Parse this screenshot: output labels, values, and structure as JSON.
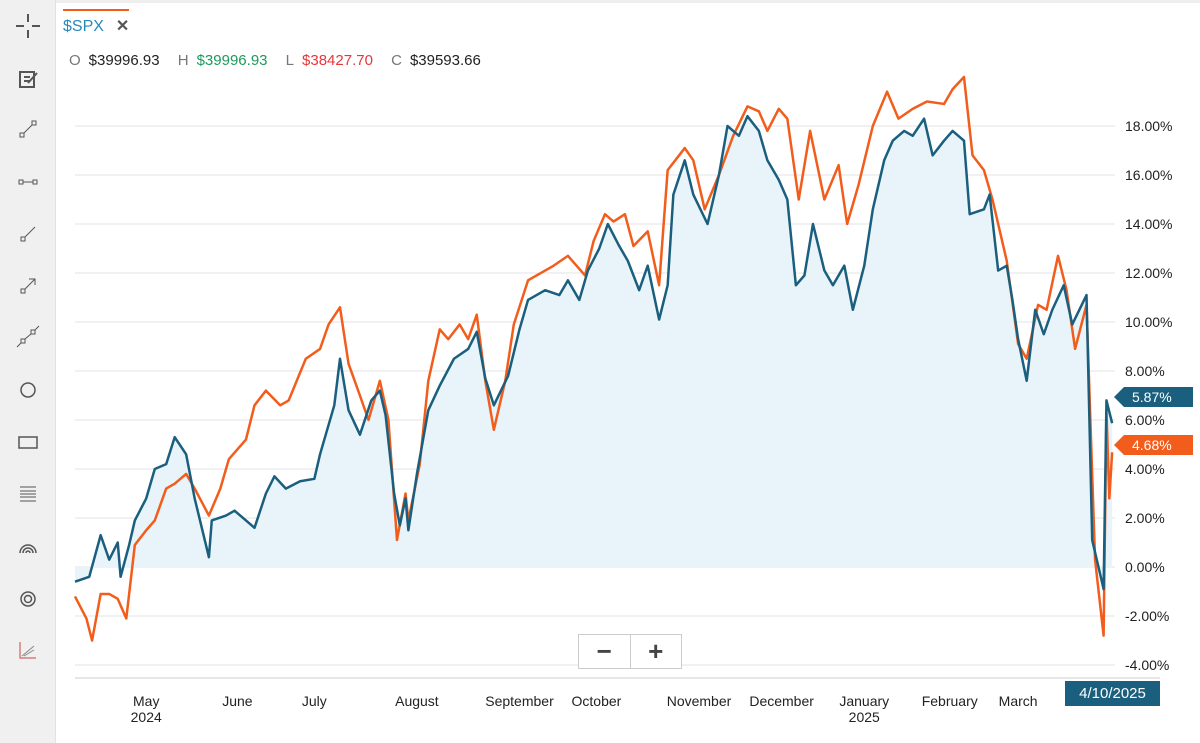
{
  "tab": {
    "symbol": "$SPX",
    "close_label": "✕"
  },
  "ohlc": {
    "o_label": "O",
    "o": "$39996.93",
    "h_label": "H",
    "h": "$39996.93",
    "l_label": "L",
    "l": "$38427.70",
    "c_label": "C",
    "c": "$39593.66"
  },
  "toolbar": [
    "crosshair-icon",
    "note-icon",
    "line-segment-icon",
    "horizontal-segment-icon",
    "ray-icon",
    "arrow-icon",
    "extended-line-icon",
    "circle-icon",
    "rectangle-icon",
    "fibonacci-icon",
    "arc-icon",
    "target-icon",
    "trend-chart-icon"
  ],
  "zoom": {
    "minus": "−",
    "plus": "+"
  },
  "colors": {
    "blue": "#1b5f7e",
    "orange": "#f25d1c",
    "fill": "#e8f4fa"
  },
  "chart_data": {
    "type": "line",
    "xlabel": "",
    "ylabel": "",
    "xlim": [
      0,
      365
    ],
    "ylim": [
      -4,
      20
    ],
    "y_ticks": [
      18,
      16,
      14,
      12,
      10,
      8,
      6,
      4,
      2,
      0,
      -2,
      -4
    ],
    "y_tick_labels": [
      "18.00%",
      "16.00%",
      "14.00%",
      "12.00%",
      "10.00%",
      "8.00%",
      "6.00%",
      "4.00%",
      "2.00%",
      "0.00%",
      "-2.00%",
      "-4.00%"
    ],
    "x_ticks": [
      {
        "day": 25,
        "label": "May",
        "sub": "2024"
      },
      {
        "day": 57,
        "label": "June",
        "sub": ""
      },
      {
        "day": 84,
        "label": "July",
        "sub": ""
      },
      {
        "day": 120,
        "label": "August",
        "sub": ""
      },
      {
        "day": 156,
        "label": "September",
        "sub": ""
      },
      {
        "day": 183,
        "label": "October",
        "sub": ""
      },
      {
        "day": 219,
        "label": "November",
        "sub": ""
      },
      {
        "day": 248,
        "label": "December",
        "sub": ""
      },
      {
        "day": 277,
        "label": "January",
        "sub": "2025"
      },
      {
        "day": 307,
        "label": "February",
        "sub": ""
      },
      {
        "day": 331,
        "label": "March",
        "sub": ""
      }
    ],
    "current_date": "4/10/2025",
    "grid": true,
    "series": [
      {
        "name": "blue",
        "last_label": "5.87%",
        "x": [
          0,
          5,
          9,
          12,
          15,
          16,
          19,
          21,
          25,
          28,
          32,
          35,
          39,
          42,
          47,
          48,
          53,
          56,
          60,
          63,
          67,
          70,
          74,
          79,
          84,
          86,
          91,
          93,
          96,
          100,
          104,
          107,
          109,
          112,
          114,
          116,
          117,
          120,
          124,
          128,
          133,
          138,
          141,
          144,
          147,
          152,
          156,
          159,
          165,
          170,
          173,
          177,
          180,
          184,
          187,
          191,
          194,
          198,
          201,
          205,
          208,
          210,
          214,
          217,
          222,
          226,
          229,
          233,
          236,
          240,
          243,
          247,
          250,
          253,
          256,
          259,
          263,
          266,
          270,
          273,
          277,
          280,
          284,
          287,
          291,
          294,
          298,
          301,
          305,
          308,
          312,
          314,
          319,
          321,
          324,
          327,
          329,
          331,
          334,
          337,
          340,
          343,
          347,
          350,
          355,
          357,
          361,
          362,
          364
        ],
        "y": [
          -0.6,
          -0.4,
          1.3,
          0.3,
          1.0,
          -0.4,
          0.9,
          1.9,
          2.8,
          4.0,
          4.2,
          5.3,
          4.6,
          2.8,
          0.4,
          1.9,
          2.1,
          2.3,
          1.9,
          1.6,
          3.0,
          3.7,
          3.2,
          3.5,
          3.6,
          4.6,
          6.6,
          8.5,
          6.4,
          5.4,
          6.8,
          7.2,
          6.2,
          3.0,
          1.7,
          2.8,
          1.5,
          3.8,
          6.4,
          7.4,
          8.5,
          8.9,
          9.6,
          7.7,
          6.6,
          7.8,
          9.7,
          10.9,
          11.3,
          11.1,
          11.7,
          10.9,
          12.1,
          13.0,
          14.0,
          13.1,
          12.5,
          11.3,
          12.3,
          10.1,
          11.5,
          15.2,
          16.6,
          15.2,
          14.0,
          16.0,
          18.0,
          17.6,
          18.4,
          17.8,
          16.6,
          15.8,
          15.0,
          11.5,
          11.9,
          14.0,
          12.1,
          11.5,
          12.3,
          10.5,
          12.3,
          14.6,
          16.6,
          17.4,
          17.8,
          17.6,
          18.3,
          16.8,
          17.4,
          17.8,
          17.4,
          14.4,
          14.6,
          15.2,
          12.1,
          12.3,
          10.9,
          9.3,
          7.6,
          10.5,
          9.5,
          10.5,
          11.5,
          9.9,
          11.1,
          1.1,
          -0.9,
          6.8,
          5.87
        ]
      },
      {
        "name": "orange",
        "last_label": "4.68%",
        "x": [
          0,
          4,
          6,
          9,
          12,
          15,
          18,
          21,
          25,
          28,
          32,
          35,
          39,
          42,
          47,
          51,
          54,
          60,
          63,
          67,
          72,
          75,
          81,
          86,
          89,
          93,
          96,
          100,
          103,
          107,
          110,
          113,
          116,
          117,
          121,
          124,
          128,
          131,
          135,
          138,
          141,
          144,
          147,
          151,
          154,
          159,
          165,
          168,
          173,
          179,
          182,
          186,
          189,
          193,
          196,
          201,
          205,
          208,
          214,
          217,
          221,
          226,
          231,
          236,
          240,
          243,
          247,
          250,
          254,
          258,
          263,
          268,
          271,
          275,
          280,
          285,
          289,
          294,
          299,
          305,
          308,
          312,
          315,
          319,
          322,
          327,
          331,
          334,
          338,
          341,
          345,
          348,
          351,
          355,
          358,
          361,
          362,
          363,
          364
        ],
        "y": [
          -1.2,
          -2.1,
          -3.0,
          -1.1,
          -1.1,
          -1.3,
          -2.1,
          0.9,
          1.5,
          1.9,
          3.2,
          3.4,
          3.8,
          3.2,
          2.1,
          3.2,
          4.4,
          5.2,
          6.6,
          7.2,
          6.6,
          6.8,
          8.5,
          8.9,
          9.9,
          10.6,
          8.3,
          7.0,
          6.0,
          7.6,
          6.0,
          1.1,
          3.0,
          1.9,
          4.2,
          7.6,
          9.7,
          9.3,
          9.9,
          9.3,
          10.3,
          7.6,
          5.6,
          7.6,
          9.9,
          11.7,
          12.1,
          12.3,
          12.7,
          11.9,
          13.3,
          14.4,
          14.1,
          14.4,
          13.1,
          13.7,
          11.5,
          16.2,
          17.1,
          16.6,
          14.6,
          16.0,
          17.6,
          18.8,
          18.6,
          17.8,
          18.7,
          18.3,
          15.0,
          17.8,
          15.0,
          16.4,
          14.0,
          15.6,
          18.0,
          19.4,
          18.3,
          18.7,
          19.0,
          18.9,
          19.5,
          20.0,
          16.8,
          16.2,
          15.0,
          12.5,
          9.1,
          8.5,
          10.7,
          10.5,
          12.7,
          11.3,
          8.9,
          10.7,
          0.3,
          -2.8,
          6.4,
          2.8,
          4.68
        ]
      }
    ]
  }
}
